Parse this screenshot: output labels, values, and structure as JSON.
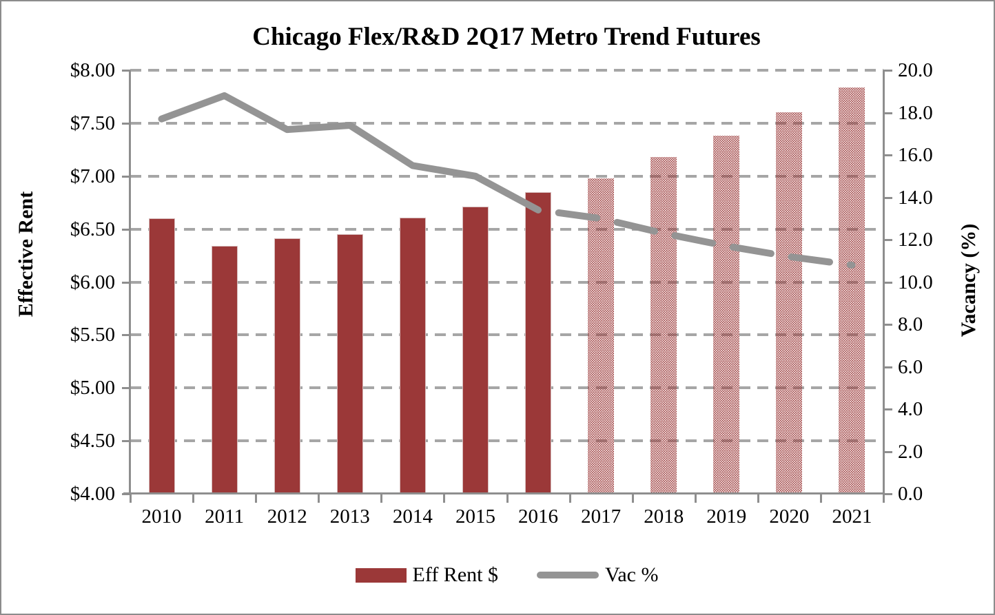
{
  "chart_data": {
    "type": "combo",
    "title": "Chicago Flex/R&D 2Q17 Metro Trend Futures",
    "categories": [
      "2010",
      "2011",
      "2012",
      "2013",
      "2014",
      "2015",
      "2016",
      "2017",
      "2018",
      "2019",
      "2020",
      "2021"
    ],
    "series": [
      {
        "name": "Eff Rent $",
        "render": "bar",
        "axis": "left",
        "values": [
          6.6,
          6.34,
          6.41,
          6.45,
          6.61,
          6.71,
          6.85,
          6.98,
          7.18,
          7.38,
          7.6,
          7.84
        ]
      },
      {
        "name": "Vac %",
        "render": "line",
        "axis": "right",
        "values": [
          17.7,
          18.8,
          17.2,
          17.4,
          15.5,
          15.0,
          13.4,
          13.0,
          12.3,
          11.7,
          11.2,
          10.8
        ]
      }
    ],
    "forecast_start_index": 7,
    "forecast_note": "2017-2021 bars drawn with dotted fill and vacancy line drawn dashed (futures/forecast)",
    "left_axis": {
      "label": "Effective Rent",
      "min": 4.0,
      "max": 8.0,
      "ticks": [
        "$8.00",
        "$7.50",
        "$7.00",
        "$6.50",
        "$6.00",
        "$5.50",
        "$5.00",
        "$4.50",
        "$4.00"
      ]
    },
    "right_axis": {
      "label": "Vacancy (%)",
      "min": 0.0,
      "max": 20.0,
      "ticks": [
        "20.0",
        "18.0",
        "16.0",
        "14.0",
        "12.0",
        "10.0",
        "8.0",
        "6.0",
        "4.0",
        "2.0",
        "0.0"
      ]
    },
    "legend": [
      {
        "label": "Eff Rent $",
        "swatch": "bar-swatch-icon"
      },
      {
        "label": "Vac %",
        "swatch": "line-swatch-icon"
      }
    ],
    "grid": "horizontal dashed",
    "legend_position": "bottom"
  },
  "colors": {
    "bar": "#9b3838",
    "line": "#949494",
    "gridline": "#a6a6a6",
    "axis": "#8e8e8e",
    "text": "#000000",
    "background": "#ffffff"
  }
}
